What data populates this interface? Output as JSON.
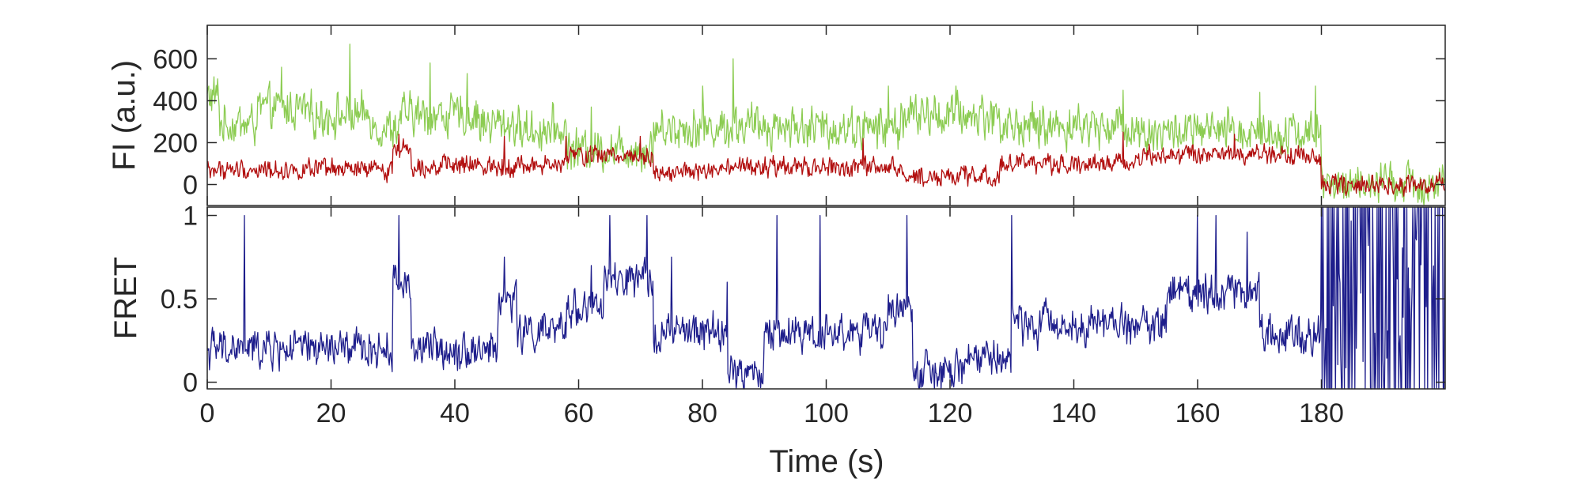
{
  "chart_data": [
    {
      "type": "line",
      "ylabel": "FI (a.u.)",
      "xlim": [
        0,
        200
      ],
      "ylim": [
        -100,
        760
      ],
      "xticks": [
        0,
        20,
        40,
        60,
        80,
        100,
        120,
        140,
        160,
        180
      ],
      "yticks": [
        0,
        200,
        400,
        600
      ],
      "ytick_labels": [
        "0",
        "200",
        "400",
        "600"
      ],
      "grid": false,
      "series": [
        {
          "color": "#8ccc52",
          "segments": [
            {
              "x0": 0,
              "x1": 2,
              "base": 420
            },
            {
              "x0": 2,
              "x1": 8,
              "base": 290
            },
            {
              "x0": 8,
              "x1": 16,
              "base": 360
            },
            {
              "x0": 16,
              "x1": 27,
              "base": 330
            },
            {
              "x0": 27,
              "x1": 31,
              "base": 270
            },
            {
              "x0": 31,
              "x1": 44,
              "base": 330
            },
            {
              "x0": 44,
              "x1": 50,
              "base": 290
            },
            {
              "x0": 50,
              "x1": 58,
              "base": 260
            },
            {
              "x0": 58,
              "x1": 72,
              "base": 170
            },
            {
              "x0": 72,
              "x1": 84,
              "base": 270
            },
            {
              "x0": 84,
              "x1": 96,
              "base": 280
            },
            {
              "x0": 96,
              "x1": 112,
              "base": 270
            },
            {
              "x0": 112,
              "x1": 128,
              "base": 330
            },
            {
              "x0": 128,
              "x1": 150,
              "base": 280
            },
            {
              "x0": 150,
              "x1": 180,
              "base": 250
            },
            {
              "x0": 180,
              "x1": 200,
              "base": 0
            }
          ],
          "noise": 85,
          "spikes": [
            [
              12,
              560
            ],
            [
              23,
              670
            ],
            [
              36,
              580
            ],
            [
              42,
              530
            ],
            [
              62,
              370
            ],
            [
              80,
              470
            ],
            [
              85,
              600
            ],
            [
              110,
              470
            ],
            [
              121,
              470
            ],
            [
              148,
              450
            ],
            [
              170,
              440
            ],
            [
              179,
              470
            ]
          ]
        },
        {
          "color": "#b20f0f",
          "segments": [
            {
              "x0": 0,
              "x1": 30,
              "base": 70
            },
            {
              "x0": 30,
              "x1": 33,
              "base": 170
            },
            {
              "x0": 33,
              "x1": 58,
              "base": 90
            },
            {
              "x0": 58,
              "x1": 72,
              "base": 140
            },
            {
              "x0": 72,
              "x1": 84,
              "base": 60
            },
            {
              "x0": 84,
              "x1": 112,
              "base": 80
            },
            {
              "x0": 112,
              "x1": 128,
              "base": 40
            },
            {
              "x0": 128,
              "x1": 150,
              "base": 100
            },
            {
              "x0": 150,
              "x1": 180,
              "base": 140
            },
            {
              "x0": 180,
              "x1": 200,
              "base": 0
            }
          ],
          "noise": 40,
          "spikes": [
            [
              31,
              240
            ],
            [
              48,
              230
            ],
            [
              58,
              230
            ],
            [
              70,
              230
            ],
            [
              106,
              220
            ],
            [
              148,
              250
            ],
            [
              166,
              240
            ]
          ]
        }
      ]
    },
    {
      "type": "line",
      "xlabel": "Time (s)",
      "ylabel": "FRET",
      "xlim": [
        0,
        200
      ],
      "ylim": [
        -0.04,
        1.05
      ],
      "xticks": [
        0,
        20,
        40,
        60,
        80,
        100,
        120,
        140,
        160,
        180
      ],
      "xtick_labels": [
        "0",
        "20",
        "40",
        "60",
        "80",
        "100",
        "120",
        "140",
        "160",
        "180"
      ],
      "yticks": [
        0,
        0.5,
        1
      ],
      "ytick_labels": [
        "0",
        "0.5",
        "1"
      ],
      "grid": false,
      "series": [
        {
          "color": "#1e1e8c",
          "segments": [
            {
              "x0": 0,
              "x1": 30,
              "base": 0.2
            },
            {
              "x0": 30,
              "x1": 33,
              "base": 0.6
            },
            {
              "x0": 33,
              "x1": 47,
              "base": 0.2
            },
            {
              "x0": 47,
              "x1": 50,
              "base": 0.5
            },
            {
              "x0": 50,
              "x1": 58,
              "base": 0.3
            },
            {
              "x0": 58,
              "x1": 64,
              "base": 0.45
            },
            {
              "x0": 64,
              "x1": 72,
              "base": 0.6
            },
            {
              "x0": 72,
              "x1": 84,
              "base": 0.3
            },
            {
              "x0": 84,
              "x1": 90,
              "base": 0.05
            },
            {
              "x0": 90,
              "x1": 98,
              "base": 0.3
            },
            {
              "x0": 98,
              "x1": 110,
              "base": 0.3
            },
            {
              "x0": 110,
              "x1": 114,
              "base": 0.45
            },
            {
              "x0": 114,
              "x1": 122,
              "base": 0.05
            },
            {
              "x0": 122,
              "x1": 130,
              "base": 0.15
            },
            {
              "x0": 130,
              "x1": 155,
              "base": 0.35
            },
            {
              "x0": 155,
              "x1": 170,
              "base": 0.55
            },
            {
              "x0": 170,
              "x1": 180,
              "base": 0.3
            }
          ],
          "noise": 0.1,
          "spikes": [
            [
              6,
              1.0
            ],
            [
              31,
              1.0
            ],
            [
              48,
              0.75
            ],
            [
              62,
              0.7
            ],
            [
              65,
              1.0
            ],
            [
              71,
              1.0
            ],
            [
              75,
              0.75
            ],
            [
              84,
              0.6
            ],
            [
              92,
              1.0
            ],
            [
              99,
              1.0
            ],
            [
              113,
              1.0
            ],
            [
              130,
              1.0
            ],
            [
              160,
              1.0
            ],
            [
              163,
              1.0
            ],
            [
              168,
              0.9
            ]
          ],
          "noisy_region": {
            "x0": 180,
            "x1": 200,
            "values": [
              0,
              1
            ]
          }
        }
      ]
    }
  ]
}
